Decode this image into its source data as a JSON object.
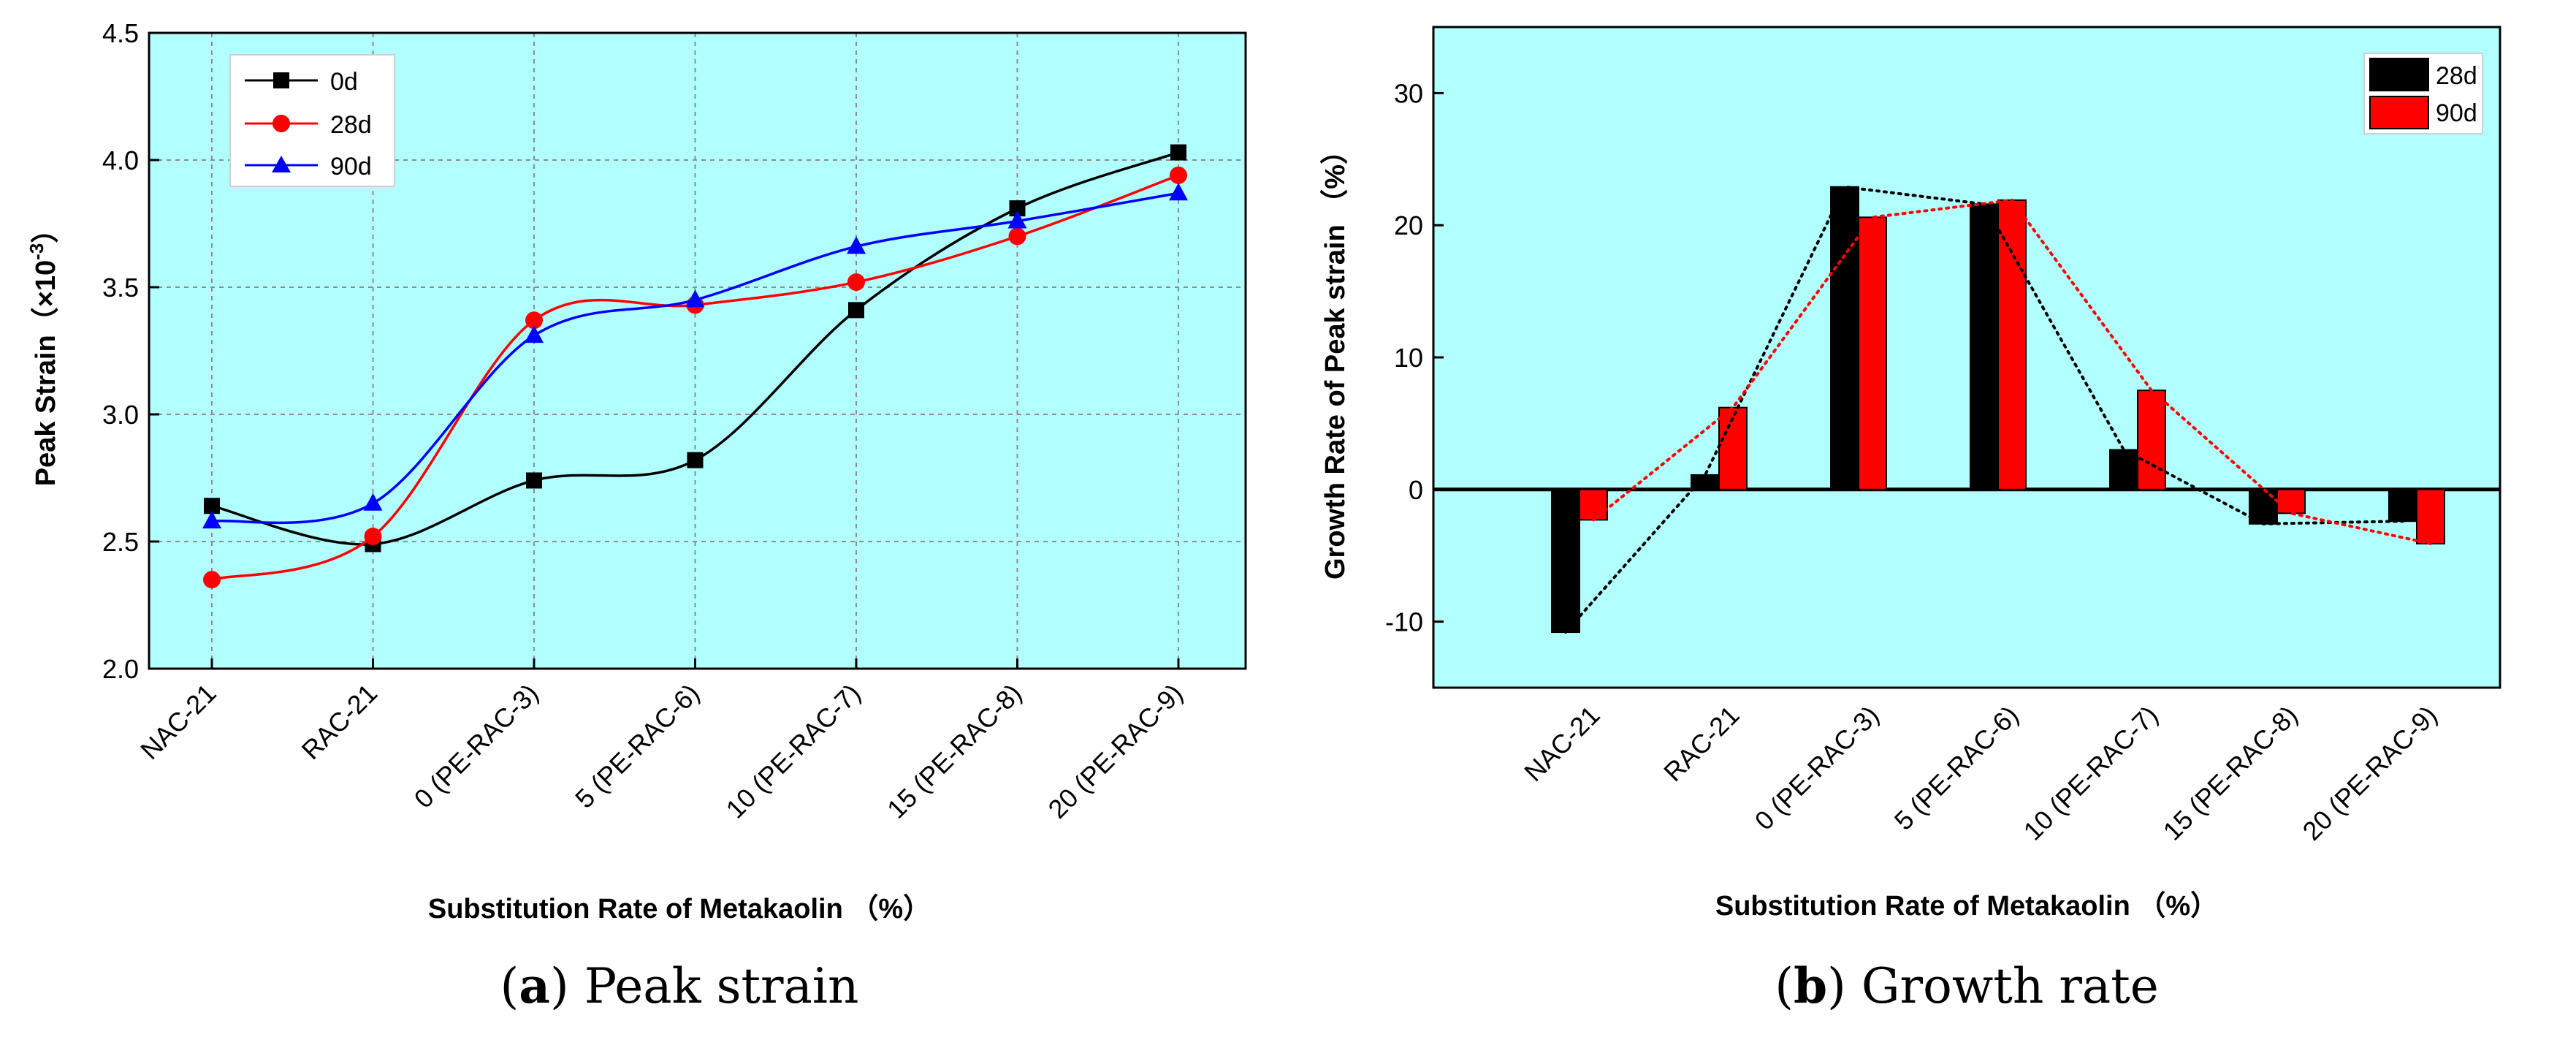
{
  "colors": {
    "plot_bg": "#b2ffff",
    "series_0d": "#000000",
    "series_28d": "#ff0000",
    "series_90d": "#0000ff"
  },
  "caption_a": {
    "letter": "a",
    "text": " Peak strain"
  },
  "caption_b": {
    "letter": "b",
    "text": " Growth rate"
  },
  "chart_data": [
    {
      "type": "line",
      "panel": "a",
      "ylabel_main": "Peak Strain",
      "ylabel_unit_prefix": "（×10",
      "ylabel_unit_sup": "-3",
      "ylabel_unit_suffix": "）",
      "xlabel": "Substitution Rate of Metakaolin （%）",
      "categories": [
        "NAC-21",
        "RAC-21",
        "0 (PE-RAC-3)",
        "5 (PE-RAC-6)",
        "10 (PE-RAC-7)",
        "15 (PE-RAC-8)",
        "20 (PE-RAC-9)"
      ],
      "ylim": [
        2.0,
        4.5
      ],
      "yticks": [
        "2.0",
        "2.5",
        "3.0",
        "3.5",
        "4.0",
        "4.5"
      ],
      "legend_position": "top-left",
      "grid": true,
      "series": [
        {
          "name": "0d",
          "marker": "square",
          "values": [
            2.64,
            2.49,
            2.74,
            2.82,
            3.41,
            3.81,
            4.03
          ]
        },
        {
          "name": "28d",
          "marker": "circle",
          "values": [
            2.35,
            2.52,
            3.37,
            3.43,
            3.52,
            3.7,
            3.94
          ]
        },
        {
          "name": "90d",
          "marker": "triangle",
          "values": [
            2.58,
            2.65,
            3.31,
            3.45,
            3.66,
            3.76,
            3.87
          ]
        }
      ]
    },
    {
      "type": "bar",
      "panel": "b",
      "ylabel": "Growth Rate of Peak strain （%）",
      "xlabel": "Substitution Rate of Metakaolin （%）",
      "categories": [
        "NAC-21",
        "RAC-21",
        "0 (PE-RAC-3)",
        "5 (PE-RAC-6)",
        "10 (PE-RAC-7)",
        "15 (PE-RAC-8)",
        "20 (PE-RAC-9)"
      ],
      "ylim": [
        -15,
        35
      ],
      "yticks": [
        "-10",
        "0",
        "10",
        "20",
        "30"
      ],
      "legend_position": "top-right",
      "series": [
        {
          "name": "28d",
          "values": [
            -10.8,
            1.1,
            22.9,
            21.6,
            3.0,
            -2.6,
            -2.4
          ]
        },
        {
          "name": "90d",
          "values": [
            -2.3,
            6.2,
            20.6,
            21.9,
            7.5,
            -1.8,
            -4.1
          ]
        }
      ]
    }
  ]
}
